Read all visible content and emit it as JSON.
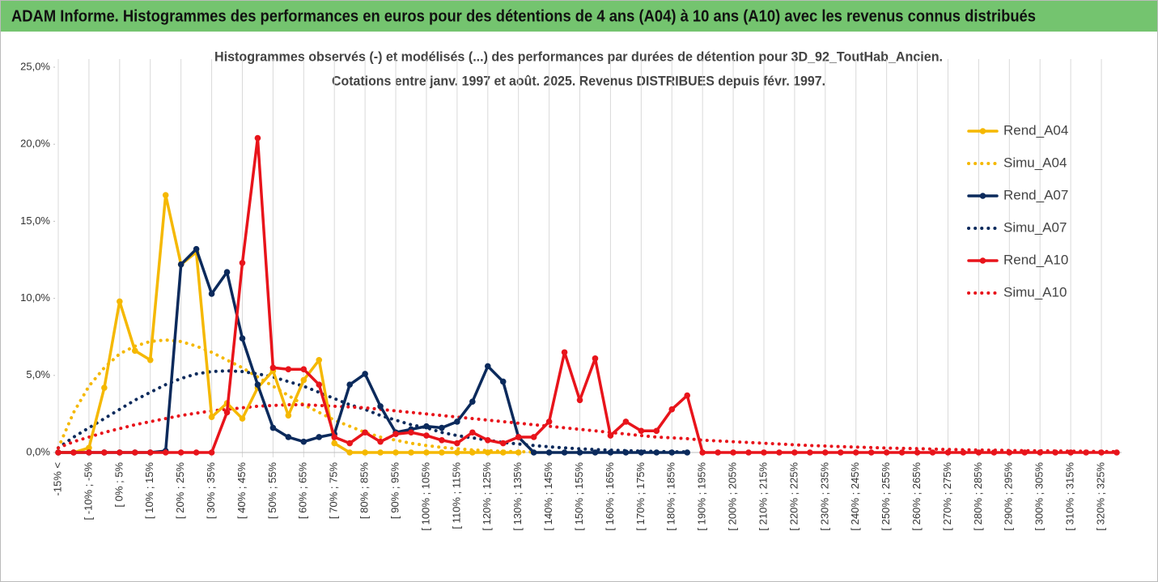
{
  "header": {
    "title": "ADAM Informe. Histogrammes des performances en euros pour des détentions de 4 ans (A04) à 10 ans (A10) avec les revenus connus distribués"
  },
  "chart_data": {
    "type": "line",
    "title": "Histogrammes observés (-) et modélisés (...) des performances par durées de détention pour 3D_92_ToutHab_Ancien.",
    "subtitle": "Cotations entre janv. 1997 et août. 2025. Revenus DISTRIBUES depuis févr. 1997.",
    "categories": [
      "-15% <",
      null,
      "[ -10% ; -5%",
      null,
      "[ 0% ; 5%",
      null,
      "[ 10% ; 15%",
      null,
      "[ 20% ; 25%",
      null,
      "[ 30% ; 35%",
      null,
      "[ 40% ; 45%",
      null,
      "[ 50% ; 55%",
      null,
      "[ 60% ; 65%",
      null,
      "[ 70% ; 75%",
      null,
      "[ 80% ; 85%",
      null,
      "[ 90% ; 95%",
      null,
      "[ 100% ; 105%",
      null,
      "[ 110% ; 115%",
      null,
      "[ 120% ; 125%",
      null,
      "[ 130% ; 135%",
      null,
      "[ 140% ; 145%",
      null,
      "[ 150% ; 155%",
      null,
      "[ 160% ; 165%",
      null,
      "[ 170% ; 175%",
      null,
      "[ 180% ; 185%",
      null,
      "[ 190% ; 195%",
      null,
      "[ 200% ; 205%",
      null,
      "[ 210% ; 215%",
      null,
      "[ 220% ; 225%",
      null,
      "[ 230% ; 235%",
      null,
      "[ 240% ; 245%",
      null,
      "[ 250% ; 255%",
      null,
      "[ 260% ; 265%",
      null,
      "[ 270% ; 275%",
      null,
      "[ 280% ; 285%",
      null,
      "[ 290% ; 295%",
      null,
      "[ 300% ; 305%",
      null,
      "[ 310% ; 315%",
      null,
      "[ 320% ; 325%",
      null
    ],
    "series": [
      {
        "name": "Rend_A04",
        "color": "#f5b800",
        "line_style": "solid",
        "markers": true,
        "values": [
          0,
          0,
          0.3,
          4.2,
          9.8,
          6.6,
          6.0,
          16.7,
          12.2,
          13.0,
          2.3,
          3.2,
          2.2,
          4.2,
          5.3,
          2.4,
          4.7,
          6.0,
          0.6,
          0,
          0,
          0,
          0,
          0,
          0,
          0,
          0,
          0,
          0,
          0,
          0,
          null,
          null,
          null,
          null,
          null,
          null,
          null,
          null,
          null,
          null,
          null,
          null,
          null,
          null,
          null,
          null,
          null,
          null,
          null,
          null,
          null,
          null,
          null,
          null,
          null,
          null,
          null,
          null,
          null,
          null,
          null,
          null,
          null,
          null,
          null,
          null,
          null,
          null,
          null
        ]
      },
      {
        "name": "Simu_A04",
        "color": "#f5b800",
        "line_style": "dotted",
        "markers": false,
        "values": [
          0.3,
          2.6,
          4.3,
          5.5,
          6.4,
          6.9,
          7.2,
          7.3,
          7.2,
          6.9,
          6.5,
          6.0,
          5.5,
          4.9,
          4.3,
          3.7,
          3.1,
          2.6,
          2.1,
          1.7,
          1.3,
          1.0,
          0.8,
          0.6,
          0.45,
          0.33,
          0.24,
          0.17,
          0.12,
          0.08,
          0.05,
          0.03,
          null,
          null,
          null,
          null,
          null,
          null,
          null,
          null,
          null,
          null,
          null,
          null,
          null,
          null,
          null,
          null,
          null,
          null,
          null,
          null,
          null,
          null,
          null,
          null,
          null,
          null,
          null,
          null,
          null,
          null,
          null,
          null,
          null,
          null,
          null,
          null,
          null,
          null
        ]
      },
      {
        "name": "Rend_A07",
        "color": "#0b2a5c",
        "line_style": "solid",
        "markers": true,
        "values": [
          0,
          0,
          0,
          0,
          0,
          0,
          0,
          0.1,
          12.2,
          13.2,
          10.3,
          11.7,
          7.4,
          4.4,
          1.6,
          1.0,
          0.7,
          1.0,
          1.2,
          4.4,
          5.1,
          3.0,
          1.3,
          1.5,
          1.7,
          1.6,
          2.0,
          3.3,
          5.6,
          4.6,
          1.0,
          0,
          0,
          0,
          0,
          0,
          0,
          0,
          0,
          0,
          0,
          0,
          null,
          null,
          null,
          null,
          null,
          null,
          null,
          null,
          null,
          null,
          null,
          null,
          null,
          null,
          null,
          null,
          null,
          null,
          null,
          null,
          null,
          null,
          null,
          null,
          null,
          null,
          null,
          null
        ]
      },
      {
        "name": "Simu_A07",
        "color": "#0b2a5c",
        "line_style": "dotted",
        "markers": false,
        "values": [
          0.3,
          1.0,
          1.6,
          2.2,
          2.8,
          3.4,
          3.9,
          4.4,
          4.8,
          5.1,
          5.25,
          5.3,
          5.25,
          5.1,
          4.9,
          4.6,
          4.3,
          3.9,
          3.5,
          3.1,
          2.8,
          2.4,
          2.1,
          1.8,
          1.6,
          1.3,
          1.1,
          0.95,
          0.8,
          0.65,
          0.55,
          0.45,
          0.37,
          0.3,
          0.24,
          0.19,
          0.15,
          0.12,
          0.09,
          0.07,
          0.05,
          0.04,
          null,
          null,
          null,
          null,
          null,
          null,
          null,
          null,
          null,
          null,
          null,
          null,
          null,
          null,
          null,
          null,
          null,
          null,
          null,
          null,
          null,
          null,
          null,
          null,
          null,
          null,
          null,
          null
        ]
      },
      {
        "name": "Rend_A10",
        "color": "#e8141b",
        "line_style": "solid",
        "markers": true,
        "values": [
          0,
          0,
          0,
          0,
          0,
          0,
          0,
          0,
          0,
          0,
          0,
          2.6,
          12.3,
          20.4,
          5.5,
          5.4,
          5.4,
          4.4,
          1.0,
          0.6,
          1.3,
          0.7,
          1.2,
          1.3,
          1.1,
          0.8,
          0.6,
          1.3,
          0.8,
          0.6,
          1.0,
          1.0,
          2.0,
          6.5,
          3.4,
          6.1,
          1.1,
          2.0,
          1.4,
          1.4,
          2.8,
          3.7,
          0,
          0,
          0,
          0,
          0,
          0,
          0,
          0,
          0,
          0,
          0,
          0,
          0,
          0,
          0,
          0,
          0,
          0,
          0,
          0,
          0,
          0,
          0,
          0,
          0,
          0,
          0,
          0
        ]
      },
      {
        "name": "Simu_A10",
        "color": "#e8141b",
        "line_style": "dotted",
        "markers": false,
        "values": [
          0.3,
          0.7,
          1.0,
          1.3,
          1.55,
          1.8,
          2.0,
          2.2,
          2.4,
          2.55,
          2.7,
          2.8,
          2.9,
          3.0,
          3.05,
          3.1,
          3.1,
          3.05,
          3.0,
          2.95,
          2.9,
          2.8,
          2.7,
          2.6,
          2.5,
          2.4,
          2.3,
          2.2,
          2.1,
          2.0,
          1.9,
          1.8,
          1.7,
          1.6,
          1.5,
          1.4,
          1.3,
          1.2,
          1.1,
          1.0,
          0.95,
          0.9,
          0.8,
          0.75,
          0.7,
          0.65,
          0.6,
          0.55,
          0.5,
          0.45,
          0.42,
          0.38,
          0.35,
          0.32,
          0.29,
          0.27,
          0.25,
          0.22,
          0.2,
          0.18,
          0.16,
          0.15,
          0.13,
          0.12,
          0.11,
          0.1,
          0.09,
          0.08,
          0.07,
          0.06
        ]
      }
    ],
    "ylim": [
      0,
      25
    ],
    "yticks": [
      {
        "value": 0,
        "label": "0,0%"
      },
      {
        "value": 5,
        "label": "5,0%"
      },
      {
        "value": 10,
        "label": "10,0%"
      },
      {
        "value": 15,
        "label": "15,0%"
      },
      {
        "value": 20,
        "label": "20,0%"
      },
      {
        "value": 25,
        "label": "25,0%"
      }
    ],
    "xgrid": true,
    "legend": "right"
  }
}
